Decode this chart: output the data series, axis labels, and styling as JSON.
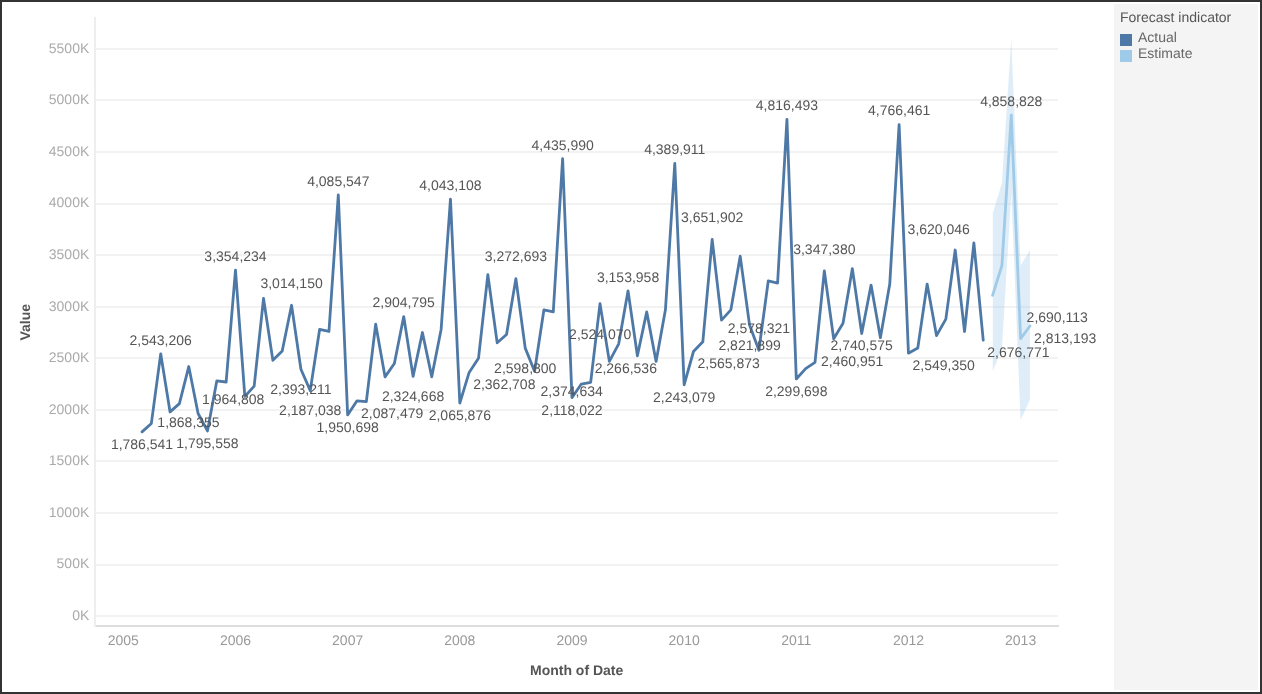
{
  "chart_data": {
    "type": "line",
    "xlabel": "Month of Date",
    "ylabel": "Value",
    "legend_title": "Forecast indicator",
    "legend": "right",
    "grid": "y",
    "marker": "none",
    "line_style": "solid",
    "xlim": [
      "2004-10",
      "2013-05"
    ],
    "xticks": [
      "2005",
      "2006",
      "2007",
      "2008",
      "2009",
      "2010",
      "2011",
      "2012",
      "2013"
    ],
    "ylim": [
      -100000,
      5800000
    ],
    "yticks": [
      {
        "value": 0,
        "label": "0K"
      },
      {
        "value": 500000,
        "label": "500K"
      },
      {
        "value": 1000000,
        "label": "1000K"
      },
      {
        "value": 1500000,
        "label": "1500K"
      },
      {
        "value": 2000000,
        "label": "2000K"
      },
      {
        "value": 2500000,
        "label": "2500K"
      },
      {
        "value": 3000000,
        "label": "3000K"
      },
      {
        "value": 3500000,
        "label": "3500K"
      },
      {
        "value": 4000000,
        "label": "4000K"
      },
      {
        "value": 4500000,
        "label": "4500K"
      },
      {
        "value": 5000000,
        "label": "5000K"
      },
      {
        "value": 5500000,
        "label": "5500K"
      }
    ],
    "series": [
      {
        "name": "Actual",
        "color": "#4e79a7",
        "x": [
          "2005-03",
          "2005-04",
          "2005-05",
          "2005-06",
          "2005-07",
          "2005-08",
          "2005-09",
          "2005-10",
          "2005-11",
          "2005-12",
          "2006-01",
          "2006-02",
          "2006-03",
          "2006-04",
          "2006-05",
          "2006-06",
          "2006-07",
          "2006-08",
          "2006-09",
          "2006-10",
          "2006-11",
          "2006-12",
          "2007-01",
          "2007-02",
          "2007-03",
          "2007-04",
          "2007-05",
          "2007-06",
          "2007-07",
          "2007-08",
          "2007-09",
          "2007-10",
          "2007-11",
          "2007-12",
          "2008-01",
          "2008-02",
          "2008-03",
          "2008-04",
          "2008-05",
          "2008-06",
          "2008-07",
          "2008-08",
          "2008-09",
          "2008-10",
          "2008-11",
          "2008-12",
          "2009-01",
          "2009-02",
          "2009-03",
          "2009-04",
          "2009-05",
          "2009-06",
          "2009-07",
          "2009-08",
          "2009-09",
          "2009-10",
          "2009-11",
          "2009-12",
          "2010-01",
          "2010-02",
          "2010-03",
          "2010-04",
          "2010-05",
          "2010-06",
          "2010-07",
          "2010-08",
          "2010-09",
          "2010-10",
          "2010-11",
          "2010-12",
          "2011-01",
          "2011-02",
          "2011-03",
          "2011-04",
          "2011-05",
          "2011-06",
          "2011-07",
          "2011-08",
          "2011-09",
          "2011-10",
          "2011-11",
          "2011-12",
          "2012-01",
          "2012-02",
          "2012-03",
          "2012-04",
          "2012-05",
          "2012-06",
          "2012-07",
          "2012-08",
          "2012-09"
        ],
        "values": [
          1786541,
          1868355,
          2543206,
          1980000,
          2060000,
          2420000,
          1964808,
          1795558,
          2280000,
          2270000,
          3354234,
          2130000,
          2230000,
          3080000,
          2480000,
          2570000,
          3014150,
          2393211,
          2187038,
          2780000,
          2760000,
          4085547,
          1950698,
          2087479,
          2080000,
          2830000,
          2320000,
          2450000,
          2904795,
          2324668,
          2750000,
          2320000,
          2780000,
          4043108,
          2065876,
          2362708,
          2500000,
          3310000,
          2650000,
          2730000,
          3272693,
          2598800,
          2374634,
          2970000,
          2950000,
          4435990,
          2118022,
          2250000,
          2266536,
          3030000,
          2470000,
          2640000,
          3153958,
          2524070,
          2950000,
          2470000,
          2970000,
          4389911,
          2243079,
          2565873,
          2660000,
          3651902,
          2870000,
          2970000,
          3490000,
          2821899,
          2578321,
          3250000,
          3230000,
          4816493,
          2299698,
          2400000,
          2460951,
          3347380,
          2690000,
          2840000,
          3370000,
          2740575,
          3210000,
          2700000,
          3220000,
          4766461,
          2549350,
          2600000,
          3220000,
          2720000,
          2880000,
          3550000,
          2760000,
          3620046,
          2676771
        ],
        "value_labels": [
          "1,786,541",
          "1,868,355",
          "2,543,206",
          null,
          null,
          null,
          "1,964,808",
          "1,795,558",
          null,
          null,
          "3,354,234",
          null,
          null,
          null,
          null,
          null,
          "3,014,150",
          "2,393,211",
          "2,187,038",
          null,
          null,
          "4,085,547",
          "1,950,698",
          "2,087,479",
          null,
          null,
          null,
          null,
          "2,904,795",
          "2,324,668",
          null,
          null,
          null,
          "4,043,108",
          "2,065,876",
          "2,362,708",
          null,
          null,
          null,
          null,
          "3,272,693",
          "2,598,800",
          "2,374,634",
          null,
          null,
          "4,435,990",
          "2,118,022",
          null,
          "2,266,536",
          null,
          null,
          null,
          "3,153,958",
          "2,524,070",
          null,
          null,
          null,
          "4,389,911",
          "2,243,079",
          "2,565,873",
          null,
          "3,651,902",
          null,
          null,
          null,
          "2,821,899",
          "2,578,321",
          null,
          null,
          "4,816,493",
          "2,299,698",
          null,
          "2,460,951",
          "3,347,380",
          null,
          null,
          null,
          "2,740,575",
          null,
          null,
          null,
          "4,766,461",
          "2,549,350",
          null,
          null,
          null,
          null,
          null,
          null,
          "3,620,046",
          "2,676,771"
        ]
      },
      {
        "name": "Estimate",
        "color": "#a0cbe8",
        "x": [
          "2012-10",
          "2012-11",
          "2012-12",
          "2013-01",
          "2013-02"
        ],
        "values": [
          3110000,
          3400000,
          4858828,
          2690113,
          2813193
        ],
        "lower": [
          2370000,
          2600000,
          4100000,
          1900000,
          2100000
        ],
        "upper": [
          3900000,
          4200000,
          5600000,
          3400000,
          3550000
        ],
        "value_labels": [
          null,
          null,
          "4,858,828",
          "2,690,113",
          "2,813,193"
        ]
      }
    ]
  }
}
